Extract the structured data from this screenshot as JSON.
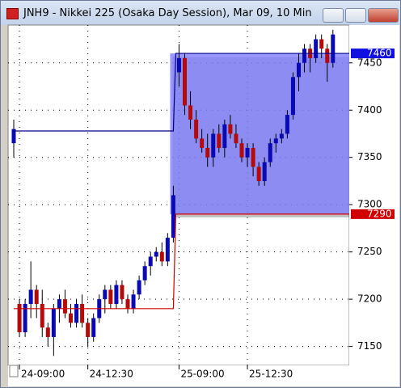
{
  "chart_data": {
    "type": "candlestick",
    "title": "JNH9 - Nikkei 225 (Osaka Day Session), Mar 09, 10 Min",
    "categories": [
      null,
      "24-09:00",
      null,
      null,
      null,
      null,
      null,
      null,
      null,
      null,
      null,
      null,
      null,
      "24-12:30",
      null,
      null,
      null,
      null,
      null,
      null,
      null,
      null,
      null,
      null,
      null,
      null,
      null,
      null,
      null,
      "25-09:00",
      null,
      null,
      null,
      null,
      null,
      null,
      null,
      null,
      null,
      null,
      null,
      "25-12:30",
      null,
      null,
      null,
      null,
      null,
      null,
      null,
      null,
      null,
      null,
      null,
      null,
      null,
      null,
      null
    ],
    "open": [
      7365,
      7195,
      7165,
      7195,
      7210,
      7195,
      7170,
      7160,
      7190,
      7200,
      7185,
      7175,
      7195,
      7175,
      7160,
      7180,
      7200,
      7210,
      7195,
      7215,
      7200,
      7190,
      7205,
      7220,
      7235,
      7245,
      7250,
      7240,
      7265,
      7440,
      7455,
      7405,
      7390,
      7370,
      7360,
      7350,
      7375,
      7360,
      7385,
      7375,
      7365,
      7350,
      7360,
      7340,
      7325,
      7345,
      7365,
      7370,
      7375,
      7395,
      7435,
      7450,
      7465,
      7455,
      7475,
      7465,
      7450
    ],
    "high": [
      7390,
      7200,
      7200,
      7240,
      7215,
      7210,
      7175,
      7195,
      7205,
      7210,
      7195,
      7200,
      7205,
      7180,
      7185,
      7205,
      7215,
      7215,
      7220,
      7220,
      7205,
      7210,
      7225,
      7240,
      7250,
      7255,
      7260,
      7270,
      7320,
      7470,
      7460,
      7420,
      7400,
      7380,
      7375,
      7380,
      7385,
      7390,
      7395,
      7385,
      7370,
      7365,
      7365,
      7345,
      7350,
      7370,
      7375,
      7380,
      7400,
      7440,
      7460,
      7470,
      7470,
      7480,
      7480,
      7470,
      7485
    ],
    "low": [
      7350,
      7160,
      7160,
      7180,
      7180,
      7160,
      7150,
      7140,
      7175,
      7180,
      7170,
      7170,
      7170,
      7150,
      7155,
      7175,
      7185,
      7190,
      7190,
      7195,
      7185,
      7185,
      7200,
      7215,
      7225,
      7240,
      7235,
      7235,
      7260,
      7425,
      7395,
      7380,
      7365,
      7355,
      7340,
      7340,
      7355,
      7350,
      7370,
      7360,
      7345,
      7340,
      7330,
      7320,
      7320,
      7340,
      7355,
      7365,
      7370,
      7390,
      7420,
      7440,
      7440,
      7450,
      7455,
      7430,
      7445
    ],
    "close": [
      7380,
      7165,
      7195,
      7210,
      7195,
      7170,
      7160,
      7190,
      7200,
      7185,
      7175,
      7195,
      7175,
      7160,
      7180,
      7200,
      7210,
      7195,
      7215,
      7200,
      7190,
      7205,
      7220,
      7235,
      7245,
      7250,
      7240,
      7265,
      7310,
      7455,
      7405,
      7390,
      7370,
      7360,
      7350,
      7375,
      7360,
      7385,
      7375,
      7365,
      7350,
      7360,
      7340,
      7325,
      7345,
      7365,
      7370,
      7375,
      7395,
      7435,
      7450,
      7465,
      7455,
      7475,
      7465,
      7450,
      7480
    ],
    "up_color": "#0a0ab4",
    "down_color": "#b40a0a",
    "series": [
      {
        "color": "#00008b",
        "values": [
          7378,
          7378,
          7378,
          7378,
          7378,
          7378,
          7378,
          7378,
          7378,
          7378,
          7378,
          7378,
          7378,
          7378,
          7378,
          7378,
          7378,
          7378,
          7378,
          7378,
          7378,
          7378,
          7378,
          7378,
          7378,
          7378,
          7378,
          7378,
          7378,
          7460,
          7460,
          7460,
          7460,
          7460,
          7460,
          7460,
          7460,
          7460,
          7460,
          7460,
          7460,
          7460,
          7460,
          7460,
          7460,
          7460,
          7460,
          7460,
          7460,
          7460,
          7460,
          7460,
          7460,
          7460,
          7460,
          7460,
          7460
        ]
      },
      {
        "color": "#d00000",
        "values": [
          7190,
          7190,
          7190,
          7190,
          7190,
          7190,
          7190,
          7190,
          7190,
          7190,
          7190,
          7190,
          7190,
          7190,
          7190,
          7190,
          7190,
          7190,
          7190,
          7190,
          7190,
          7190,
          7190,
          7190,
          7190,
          7190,
          7190,
          7190,
          7190,
          7290,
          7290,
          7290,
          7290,
          7290,
          7290,
          7290,
          7290,
          7290,
          7290,
          7290,
          7290,
          7290,
          7290,
          7290,
          7290,
          7290,
          7290,
          7290,
          7290,
          7290,
          7290,
          7290,
          7290,
          7290,
          7290,
          7290,
          7290
        ]
      }
    ],
    "markers": [
      {
        "value": 7460,
        "color": "#1010e0"
      },
      {
        "value": 7290,
        "color": "#d00000"
      }
    ],
    "range_color": "#8080ff",
    "ylim": [
      7130,
      7490
    ],
    "yticks": [
      7150,
      7200,
      7250,
      7300,
      7350,
      7400,
      7450
    ],
    "grid": true
  }
}
